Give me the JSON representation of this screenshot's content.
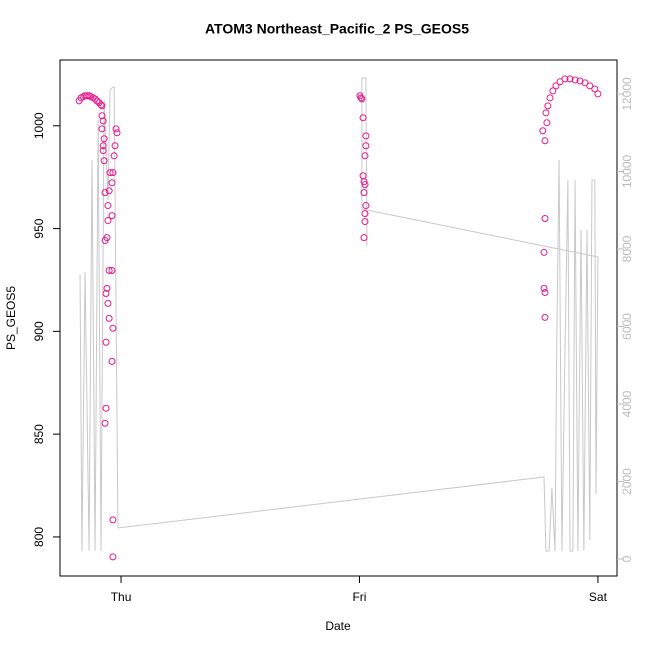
{
  "chart_data": {
    "type": "scatter",
    "title": "ATOM3 Northeast_Pacific_2 PS_GEOS5",
    "x_label": "Date",
    "y_label": "PS_GEOS5",
    "xlim": [
      -0.256,
      2.08
    ],
    "xticks": [
      {
        "value": 0,
        "label": "Thu"
      },
      {
        "value": 1,
        "label": "Fri"
      },
      {
        "value": 2,
        "label": "Sat"
      }
    ],
    "ylim": [
      781,
      1032
    ],
    "yticks": [
      800,
      850,
      900,
      950,
      1000
    ],
    "y2lim": [
      -439,
      12877
    ],
    "y2ticks": [
      0,
      2000,
      4000,
      6000,
      8000,
      10000,
      12000
    ],
    "series": [
      {
        "type": "scatter",
        "color": "#e6198c",
        "x": [
          -0.176,
          -0.168,
          -0.159,
          -0.151,
          -0.143,
          -0.134,
          -0.126,
          -0.117,
          -0.109,
          -0.101,
          -0.092,
          -0.084,
          -0.08,
          -0.08,
          -0.075,
          -0.08,
          -0.071,
          -0.075,
          -0.075,
          -0.071,
          -0.046,
          -0.034,
          -0.038,
          -0.05,
          -0.067,
          -0.055,
          -0.038,
          -0.055,
          -0.059,
          -0.067,
          -0.05,
          -0.038,
          -0.059,
          -0.063,
          -0.055,
          -0.05,
          -0.034,
          -0.063,
          -0.038,
          -0.063,
          -0.067,
          -0.034,
          -0.034,
          -0.021,
          -0.017,
          -0.025,
          -0.029,
          1.002,
          1.006,
          1.01,
          1.015,
          1.027,
          1.027,
          1.023,
          1.015,
          1.019,
          1.023,
          1.019,
          1.027,
          1.023,
          1.023,
          1.019,
          1.782,
          1.79,
          1.799,
          1.811,
          1.824,
          1.841,
          1.862,
          1.883,
          1.904,
          1.925,
          1.946,
          1.966,
          1.987,
          2.0,
          1.769,
          1.778,
          1.786,
          1.778,
          1.774,
          1.774,
          1.778,
          1.778
        ],
        "values": [
          1012.1,
          1013.6,
          1014.1,
          1014.6,
          1014.6,
          1014.6,
          1014.1,
          1013.6,
          1013.1,
          1012.1,
          1011.2,
          1010.2,
          1009.7,
          1004.9,
          1002.4,
          998.5,
          993.7,
          990.3,
          987.9,
          983.0,
          977.2,
          977.2,
          972.3,
          968.4,
          967.5,
          961.2,
          956.3,
          953.9,
          945.6,
          944.2,
          929.6,
          929.6,
          920.9,
          918.4,
          913.6,
          906.3,
          901.5,
          894.7,
          885.4,
          862.6,
          855.3,
          808.3,
          790.3,
          998.5,
          996.6,
          990.3,
          985.4,
          1014.6,
          1013.6,
          1013.1,
          1003.9,
          995.1,
          990.3,
          985.4,
          975.7,
          972.8,
          971.4,
          967.5,
          961.2,
          957.3,
          953.4,
          945.6,
          1006.3,
          1009.7,
          1013.6,
          1017.0,
          1019.4,
          1021.4,
          1022.8,
          1022.8,
          1022.3,
          1021.8,
          1020.9,
          1019.4,
          1017.9,
          1015.5,
          997.6,
          992.7,
          1001.5,
          954.9,
          938.4,
          920.9,
          918.9,
          906.8
        ]
      },
      {
        "type": "line",
        "axis": "y2",
        "color": "#c8c8c8",
        "x": [
          -0.172,
          -0.164,
          -0.151,
          -0.134,
          -0.122,
          -0.109,
          -0.096,
          -0.084,
          -0.071,
          -0.055,
          -0.046,
          -0.038,
          -0.029,
          -0.013,
          1.774,
          1.782,
          1.795,
          1.807,
          1.82,
          1.828,
          1.837,
          1.849,
          1.862,
          1.874,
          1.883,
          1.895,
          1.904,
          1.916,
          1.929,
          1.941,
          1.954,
          1.966,
          1.975,
          1.987,
          1.992,
          2.0,
          1.01,
          1.01,
          1.027,
          1.031
        ],
        "values": [
          7329,
          206,
          7406,
          206,
          10297,
          206,
          11329,
          206,
          11845,
          9264,
          12103,
          12155,
          12181,
          800,
          2116,
          206,
          206,
          1832,
          206,
          5910,
          10297,
          206,
          5394,
          9781,
          206,
          206,
          9781,
          206,
          8490,
          206,
          8490,
          490,
          9781,
          9781,
          1677,
          7793,
          9032,
          12413,
          12413,
          8077
        ]
      }
    ]
  }
}
